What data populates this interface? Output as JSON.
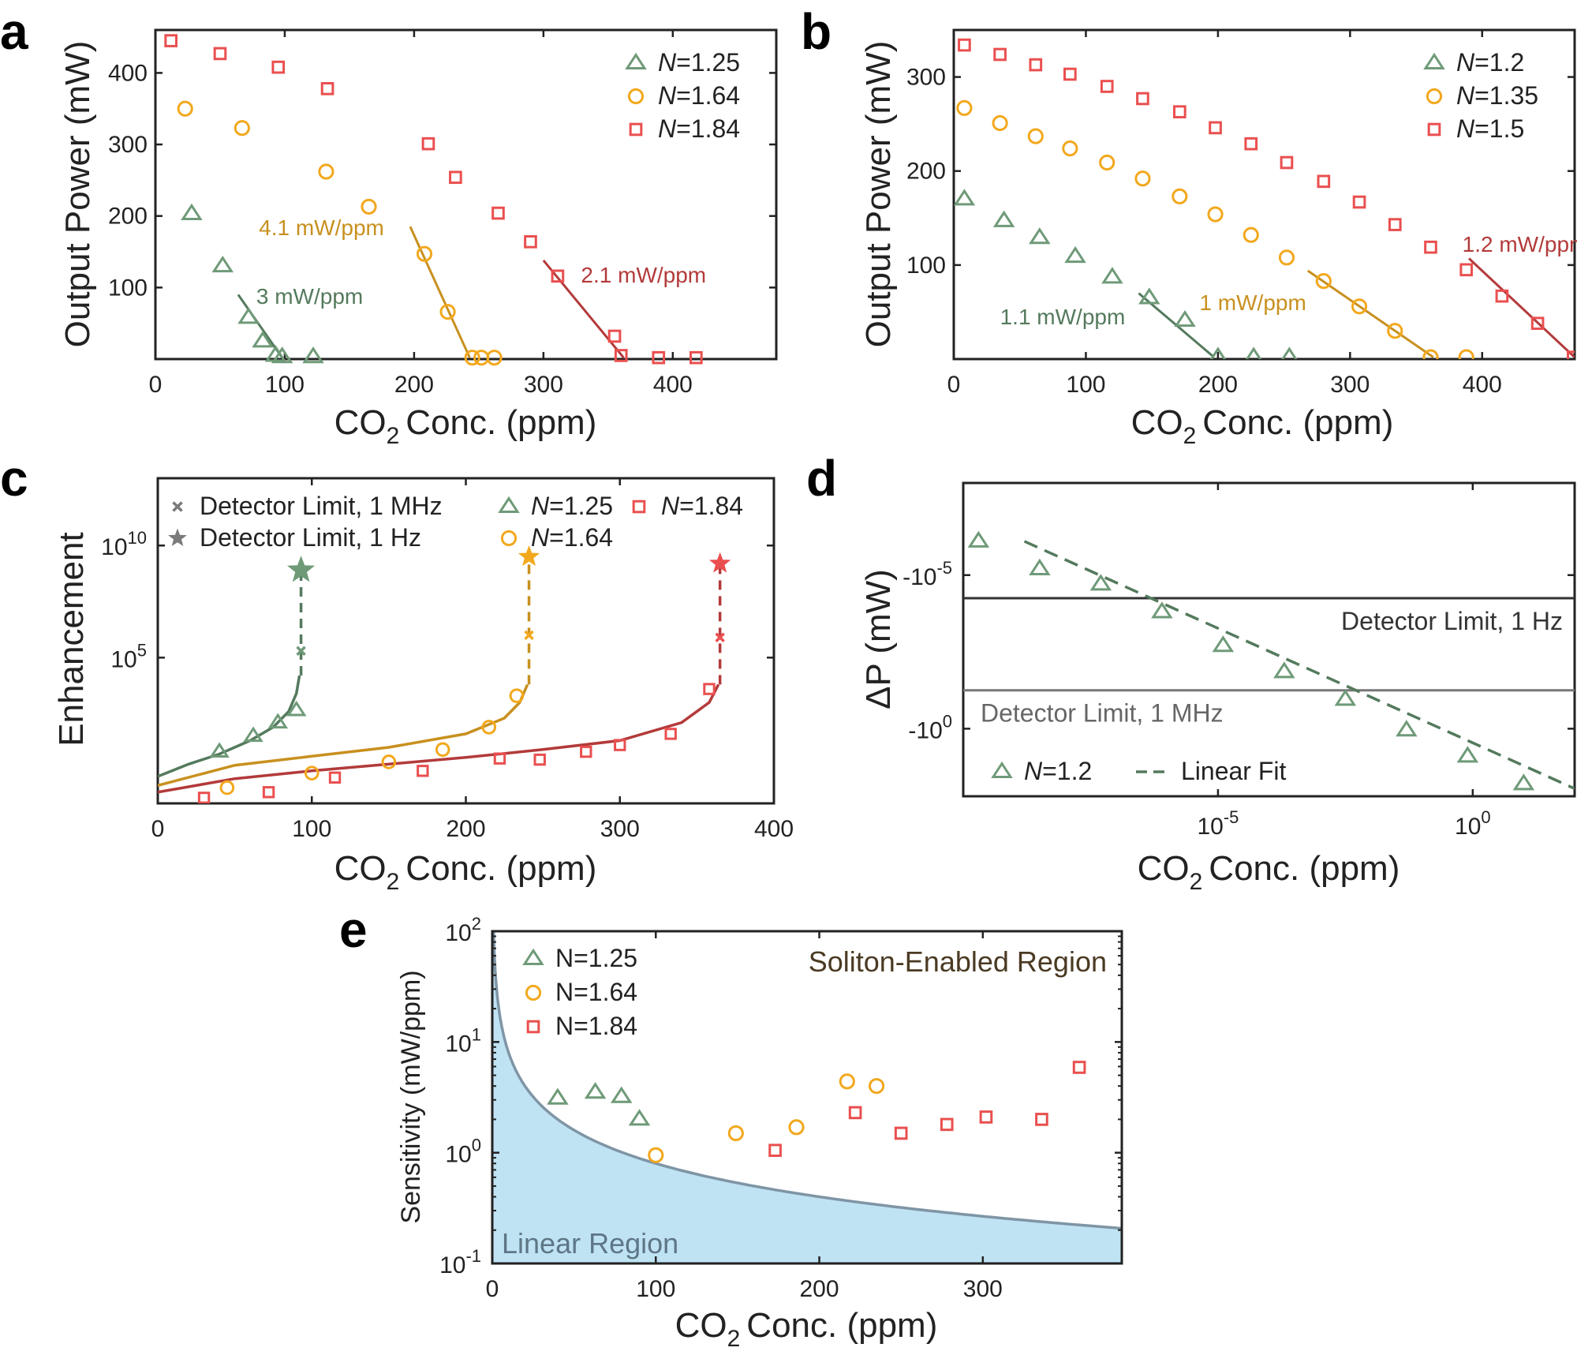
{
  "colors": {
    "green": "#6f9a78",
    "orange": "#f2a81d",
    "red": "#ea4f4f",
    "green_line": "#547a5d",
    "orange_line": "#c8901f",
    "red_line": "#b33a3a",
    "linear_fill": "#bfe3f3",
    "linear_edge": "#7f95a5"
  },
  "chart_data": [
    {
      "id": "a",
      "panel_label": "a",
      "type": "scatter",
      "xlabel_main": "CO",
      "xlabel_sub": "2",
      "xlabel_rest": "Conc. (ppm)",
      "ylabel": "Output Power (mW)",
      "xlim": [
        0,
        480
      ],
      "ylim": [
        0,
        460
      ],
      "xticks": [
        0,
        100,
        200,
        300,
        400
      ],
      "yticks": [
        100,
        200,
        300,
        400
      ],
      "legend_position": "top-right",
      "series": [
        {
          "name_prefix": "N",
          "name_value": "=1.25",
          "marker": "triangle",
          "color": "green",
          "x": [
            28,
            52,
            72,
            83,
            93,
            98,
            122
          ],
          "y": [
            203,
            130,
            58,
            25,
            5,
            3,
            3
          ]
        },
        {
          "name_prefix": "N",
          "name_value": "=1.64",
          "marker": "circle",
          "color": "orange",
          "x": [
            23,
            67,
            132,
            165,
            208,
            226,
            245,
            252,
            262
          ],
          "y": [
            350,
            323,
            262,
            213,
            147,
            66,
            2,
            2,
            2
          ]
        },
        {
          "name_prefix": "N",
          "name_value": "=1.84",
          "marker": "square",
          "color": "red",
          "x": [
            12,
            50,
            95,
            133,
            211,
            232,
            265,
            290,
            311,
            355,
            360,
            389,
            418
          ],
          "y": [
            445,
            427,
            408,
            378,
            301,
            254,
            204,
            164,
            116,
            32,
            5,
            2,
            2
          ]
        }
      ],
      "fits": [
        {
          "color": "green_line",
          "x": [
            64,
            98
          ],
          "y": [
            90,
            2
          ]
        },
        {
          "color": "orange_line",
          "x": [
            197,
            243
          ],
          "y": [
            185,
            2
          ]
        },
        {
          "color": "red_line",
          "x": [
            300,
            362
          ],
          "y": [
            138,
            2
          ]
        }
      ],
      "annotations": [
        {
          "text": "4.1 mW/ppm",
          "color": "orange_line",
          "x": 80,
          "y": 173
        },
        {
          "text": "3 mW/ppm",
          "color": "green_line",
          "x": 78,
          "y": 77
        },
        {
          "text": "2.1 mW/ppm",
          "color": "red_line",
          "x": 329,
          "y": 107
        }
      ]
    },
    {
      "id": "b",
      "panel_label": "b",
      "type": "scatter",
      "xlabel_main": "CO",
      "xlabel_sub": "2",
      "xlabel_rest": "Conc. (ppm)",
      "ylabel": "Output Power (mW)",
      "xlim": [
        0,
        470
      ],
      "ylim": [
        0,
        350
      ],
      "xticks": [
        0,
        100,
        200,
        300,
        400
      ],
      "yticks": [
        100,
        200,
        300
      ],
      "legend_position": "top-right",
      "series": [
        {
          "name_prefix": "N",
          "name_value": "=1.2",
          "marker": "triangle",
          "color": "green",
          "x": [
            8,
            38,
            65,
            92,
            120,
            148,
            175,
            200,
            227,
            254
          ],
          "y": [
            170,
            147,
            129,
            109,
            87,
            65,
            41,
            2,
            2,
            2
          ]
        },
        {
          "name_prefix": "N",
          "name_value": "=1.35",
          "marker": "circle",
          "color": "orange",
          "x": [
            8,
            35,
            62,
            88,
            116,
            143,
            171,
            198,
            225,
            252,
            280,
            307,
            334,
            361,
            388
          ],
          "y": [
            267,
            251,
            237,
            224,
            209,
            192,
            173,
            154,
            132,
            108,
            83,
            56,
            30,
            2,
            2
          ]
        },
        {
          "name_prefix": "N",
          "name_value": "=1.5",
          "marker": "square",
          "color": "red",
          "x": [
            8,
            35,
            62,
            88,
            116,
            143,
            171,
            198,
            225,
            252,
            280,
            307,
            334,
            361,
            388,
            415,
            442,
            469,
            496
          ],
          "y": [
            334,
            324,
            313,
            303,
            290,
            277,
            263,
            246,
            229,
            209,
            189,
            167,
            143,
            119,
            95,
            67,
            38,
            2,
            2
          ]
        }
      ],
      "fits": [
        {
          "color": "green_line",
          "x": [
            140,
            197
          ],
          "y": [
            70,
            2
          ]
        },
        {
          "color": "orange_line",
          "x": [
            268,
            363
          ],
          "y": [
            94,
            2
          ]
        },
        {
          "color": "red_line",
          "x": [
            390,
            470
          ],
          "y": [
            107,
            2
          ]
        }
      ],
      "annotations": [
        {
          "text": "1.1 mW/ppm",
          "color": "green_line",
          "x": 35,
          "y": 37
        },
        {
          "text": "1 mW/ppm",
          "color": "orange_line",
          "x": 186,
          "y": 52
        },
        {
          "text": "1.2 mW/ppm",
          "color": "red_line",
          "x": 385,
          "y": 114
        }
      ]
    },
    {
      "id": "c",
      "panel_label": "c",
      "type": "scatter",
      "xlabel_main": "CO",
      "xlabel_sub": "2",
      "xlabel_rest": "Conc. (ppm)",
      "ylabel": "Enhancement",
      "yscale": "log",
      "xlim": [
        0,
        400
      ],
      "ylim_log10": [
        -1.5,
        13
      ],
      "xticks": [
        0,
        100,
        200,
        300,
        400
      ],
      "yticks": [
        {
          "base": "10",
          "exp": "5",
          "value_log10": 5
        },
        {
          "base": "10",
          "exp": "10",
          "value_log10": 10
        }
      ],
      "legend_position": "top",
      "legend_extra": [
        {
          "label": "Detector Limit, 1 MHz",
          "marker": "x",
          "color": "#7a7a7a"
        },
        {
          "label": "Detector Limit, 1 Hz",
          "marker": "star",
          "color": "#7a7a7a"
        }
      ],
      "series": [
        {
          "name_prefix": "N",
          "name_value": "=1.25",
          "marker": "triangle",
          "color": "green",
          "x": [
            40,
            62,
            78,
            90
          ],
          "log10y": [
            0.8,
            1.5,
            2.1,
            2.65
          ]
        },
        {
          "name_prefix": "N",
          "name_value": "=1.64",
          "marker": "circle",
          "color": "orange",
          "x": [
            45,
            100,
            150,
            185,
            215,
            233
          ],
          "log10y": [
            -0.8,
            -0.15,
            0.35,
            0.9,
            1.9,
            3.3
          ]
        },
        {
          "name_prefix": "N",
          "name_value": "=1.84",
          "marker": "square",
          "color": "red",
          "x": [
            30,
            72,
            115,
            172,
            222,
            248,
            278,
            300,
            333,
            358
          ],
          "log10y": [
            -1.25,
            -1.0,
            -0.35,
            -0.05,
            0.5,
            0.45,
            0.8,
            1.1,
            1.6,
            3.6
          ]
        }
      ],
      "fits": [
        {
          "color": "green_line",
          "x": [
            0,
            20,
            40,
            60,
            75,
            85,
            90,
            92
          ],
          "log10y": [
            -0.3,
            0.25,
            0.7,
            1.3,
            1.9,
            2.6,
            3.4,
            4.2
          ]
        },
        {
          "color": "orange_line",
          "x": [
            0,
            50,
            100,
            150,
            200,
            225,
            235,
            240
          ],
          "log10y": [
            -0.7,
            0.2,
            0.6,
            1.0,
            1.6,
            2.3,
            3.0,
            3.8
          ]
        },
        {
          "color": "red_line",
          "x": [
            0,
            50,
            100,
            150,
            200,
            250,
            300,
            340,
            358,
            364
          ],
          "log10y": [
            -1.0,
            -0.4,
            -0.05,
            0.25,
            0.55,
            0.9,
            1.3,
            2.1,
            3.0,
            3.8
          ]
        }
      ],
      "limits": [
        {
          "color": "green",
          "x": 93,
          "log10_1mhz": 5.3,
          "log10_1hz": 8.9,
          "dashed_from_log10": 4.2
        },
        {
          "color": "orange",
          "x": 241,
          "log10_1mhz": 6.0,
          "log10_1hz": 9.5,
          "dashed_from_log10": 3.8
        },
        {
          "color": "red",
          "x": 365,
          "log10_1mhz": 5.9,
          "log10_1hz": 9.2,
          "dashed_from_log10": 3.8
        }
      ]
    },
    {
      "id": "d",
      "panel_label": "d",
      "type": "scatter",
      "xlabel_main": "CO",
      "xlabel_sub": "2",
      "xlabel_rest": "Conc. (ppm)",
      "ylabel": "ΔP (mW)",
      "xscale": "log",
      "yscale": "log",
      "xlim_log10": [
        -10,
        2
      ],
      "ylim_log10": [
        -8,
        2.2
      ],
      "xticks": [
        {
          "base": "10",
          "exp": "-5",
          "value_log10": -5
        },
        {
          "base": "10",
          "exp": "0",
          "value_log10": 0
        }
      ],
      "yticks": [
        {
          "base": "-10",
          "exp": "-5",
          "value_log10": -5
        },
        {
          "base": "-10",
          "exp": "0",
          "value_log10": 0
        }
      ],
      "legend_position": "bottom-left",
      "legend_series_label_prefix": "N",
      "legend_series_label_value": "=1.2",
      "legend_fit_label": "Linear Fit",
      "series": [
        {
          "marker": "triangle",
          "color": "green",
          "log10x": [
            -9.7,
            -8.5,
            -7.3,
            -6.1,
            -4.9,
            -3.7,
            -2.5,
            -1.3,
            -0.1,
            1.0
          ],
          "log10y": [
            -6.1,
            -5.2,
            -4.7,
            -3.8,
            -2.7,
            -1.85,
            -0.95,
            0.05,
            0.9,
            1.8
          ]
        }
      ],
      "fit": {
        "log10x": [
          -8.8,
          2.0
        ],
        "log10y": [
          -6.1,
          1.95
        ]
      },
      "hlines": [
        {
          "label": "Detector Limit, 1 Hz",
          "log10y": -4.25,
          "color": "#333333",
          "label_color": "#333333"
        },
        {
          "label": "Detector Limit, 1 MHz",
          "log10y": -1.25,
          "color": "#777777",
          "label_color": "#666666"
        }
      ]
    },
    {
      "id": "e",
      "panel_label": "e",
      "type": "scatter",
      "xlabel_main": "CO",
      "xlabel_sub": "2",
      "xlabel_rest": "Conc. (ppm)",
      "ylabel": "Sensitivity (mW/ppm)",
      "yscale": "log",
      "xlim": [
        0,
        385
      ],
      "ylim_log10": [
        -1,
        2
      ],
      "xticks": [
        0,
        100,
        200,
        300
      ],
      "yticks": [
        {
          "base": "10",
          "exp": "-1",
          "value_log10": -1
        },
        {
          "base": "10",
          "exp": "0",
          "value_log10": 0
        },
        {
          "base": "10",
          "exp": "1",
          "value_log10": 1
        },
        {
          "base": "10",
          "exp": "2",
          "value_log10": 2
        }
      ],
      "legend_position": "top-left",
      "region_labels": {
        "upper": "Soliton-Enabled Region",
        "lower": "Linear Region"
      },
      "series": [
        {
          "name": "N=1.25",
          "marker": "triangle",
          "color": "green",
          "x": [
            40,
            63,
            79,
            90
          ],
          "y": [
            3.1,
            3.5,
            3.2,
            2.0
          ]
        },
        {
          "name": "N=1.64",
          "marker": "circle",
          "color": "orange",
          "x": [
            100,
            149,
            186,
            217,
            235
          ],
          "y": [
            0.95,
            1.5,
            1.7,
            4.4,
            4.0
          ]
        },
        {
          "name": "N=1.84",
          "marker": "square",
          "color": "red",
          "x": [
            173,
            222,
            250,
            278,
            302,
            336,
            359
          ],
          "y": [
            1.05,
            2.3,
            1.5,
            1.8,
            2.1,
            2.0,
            5.9
          ]
        }
      ],
      "boundary_formula": "80/x"
    }
  ]
}
